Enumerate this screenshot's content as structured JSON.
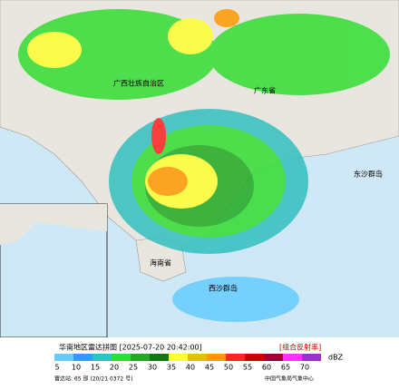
{
  "header": {
    "title": "华南地区雷达拼图 [2025-07-20 20:42:00]",
    "product": "[组合反射率]"
  },
  "places": [
    "广西壮族自治区",
    "广东省",
    "东沙群岛",
    "西沙群岛",
    "海南省"
  ],
  "legend": {
    "unit": "dBZ",
    "entries": [
      {
        "value": 5,
        "color": "#66ccff"
      },
      {
        "value": 10,
        "color": "#3399ff"
      },
      {
        "value": 15,
        "color": "#33c0c0"
      },
      {
        "value": 20,
        "color": "#33dd33"
      },
      {
        "value": 25,
        "color": "#22aa22"
      },
      {
        "value": 30,
        "color": "#117711"
      },
      {
        "value": 35,
        "color": "#ffff33"
      },
      {
        "value": 40,
        "color": "#e6c000"
      },
      {
        "value": 45,
        "color": "#ff9900"
      },
      {
        "value": 50,
        "color": "#ff2222"
      },
      {
        "value": 55,
        "color": "#cc0000"
      },
      {
        "value": 60,
        "color": "#990033"
      },
      {
        "value": 65,
        "color": "#ff33ff"
      },
      {
        "value": 70,
        "color": "#9933cc"
      }
    ]
  },
  "footer": {
    "left": "雷达站: 65 部 (20/21 0372 号)",
    "right": "中国气象局气象中心"
  }
}
